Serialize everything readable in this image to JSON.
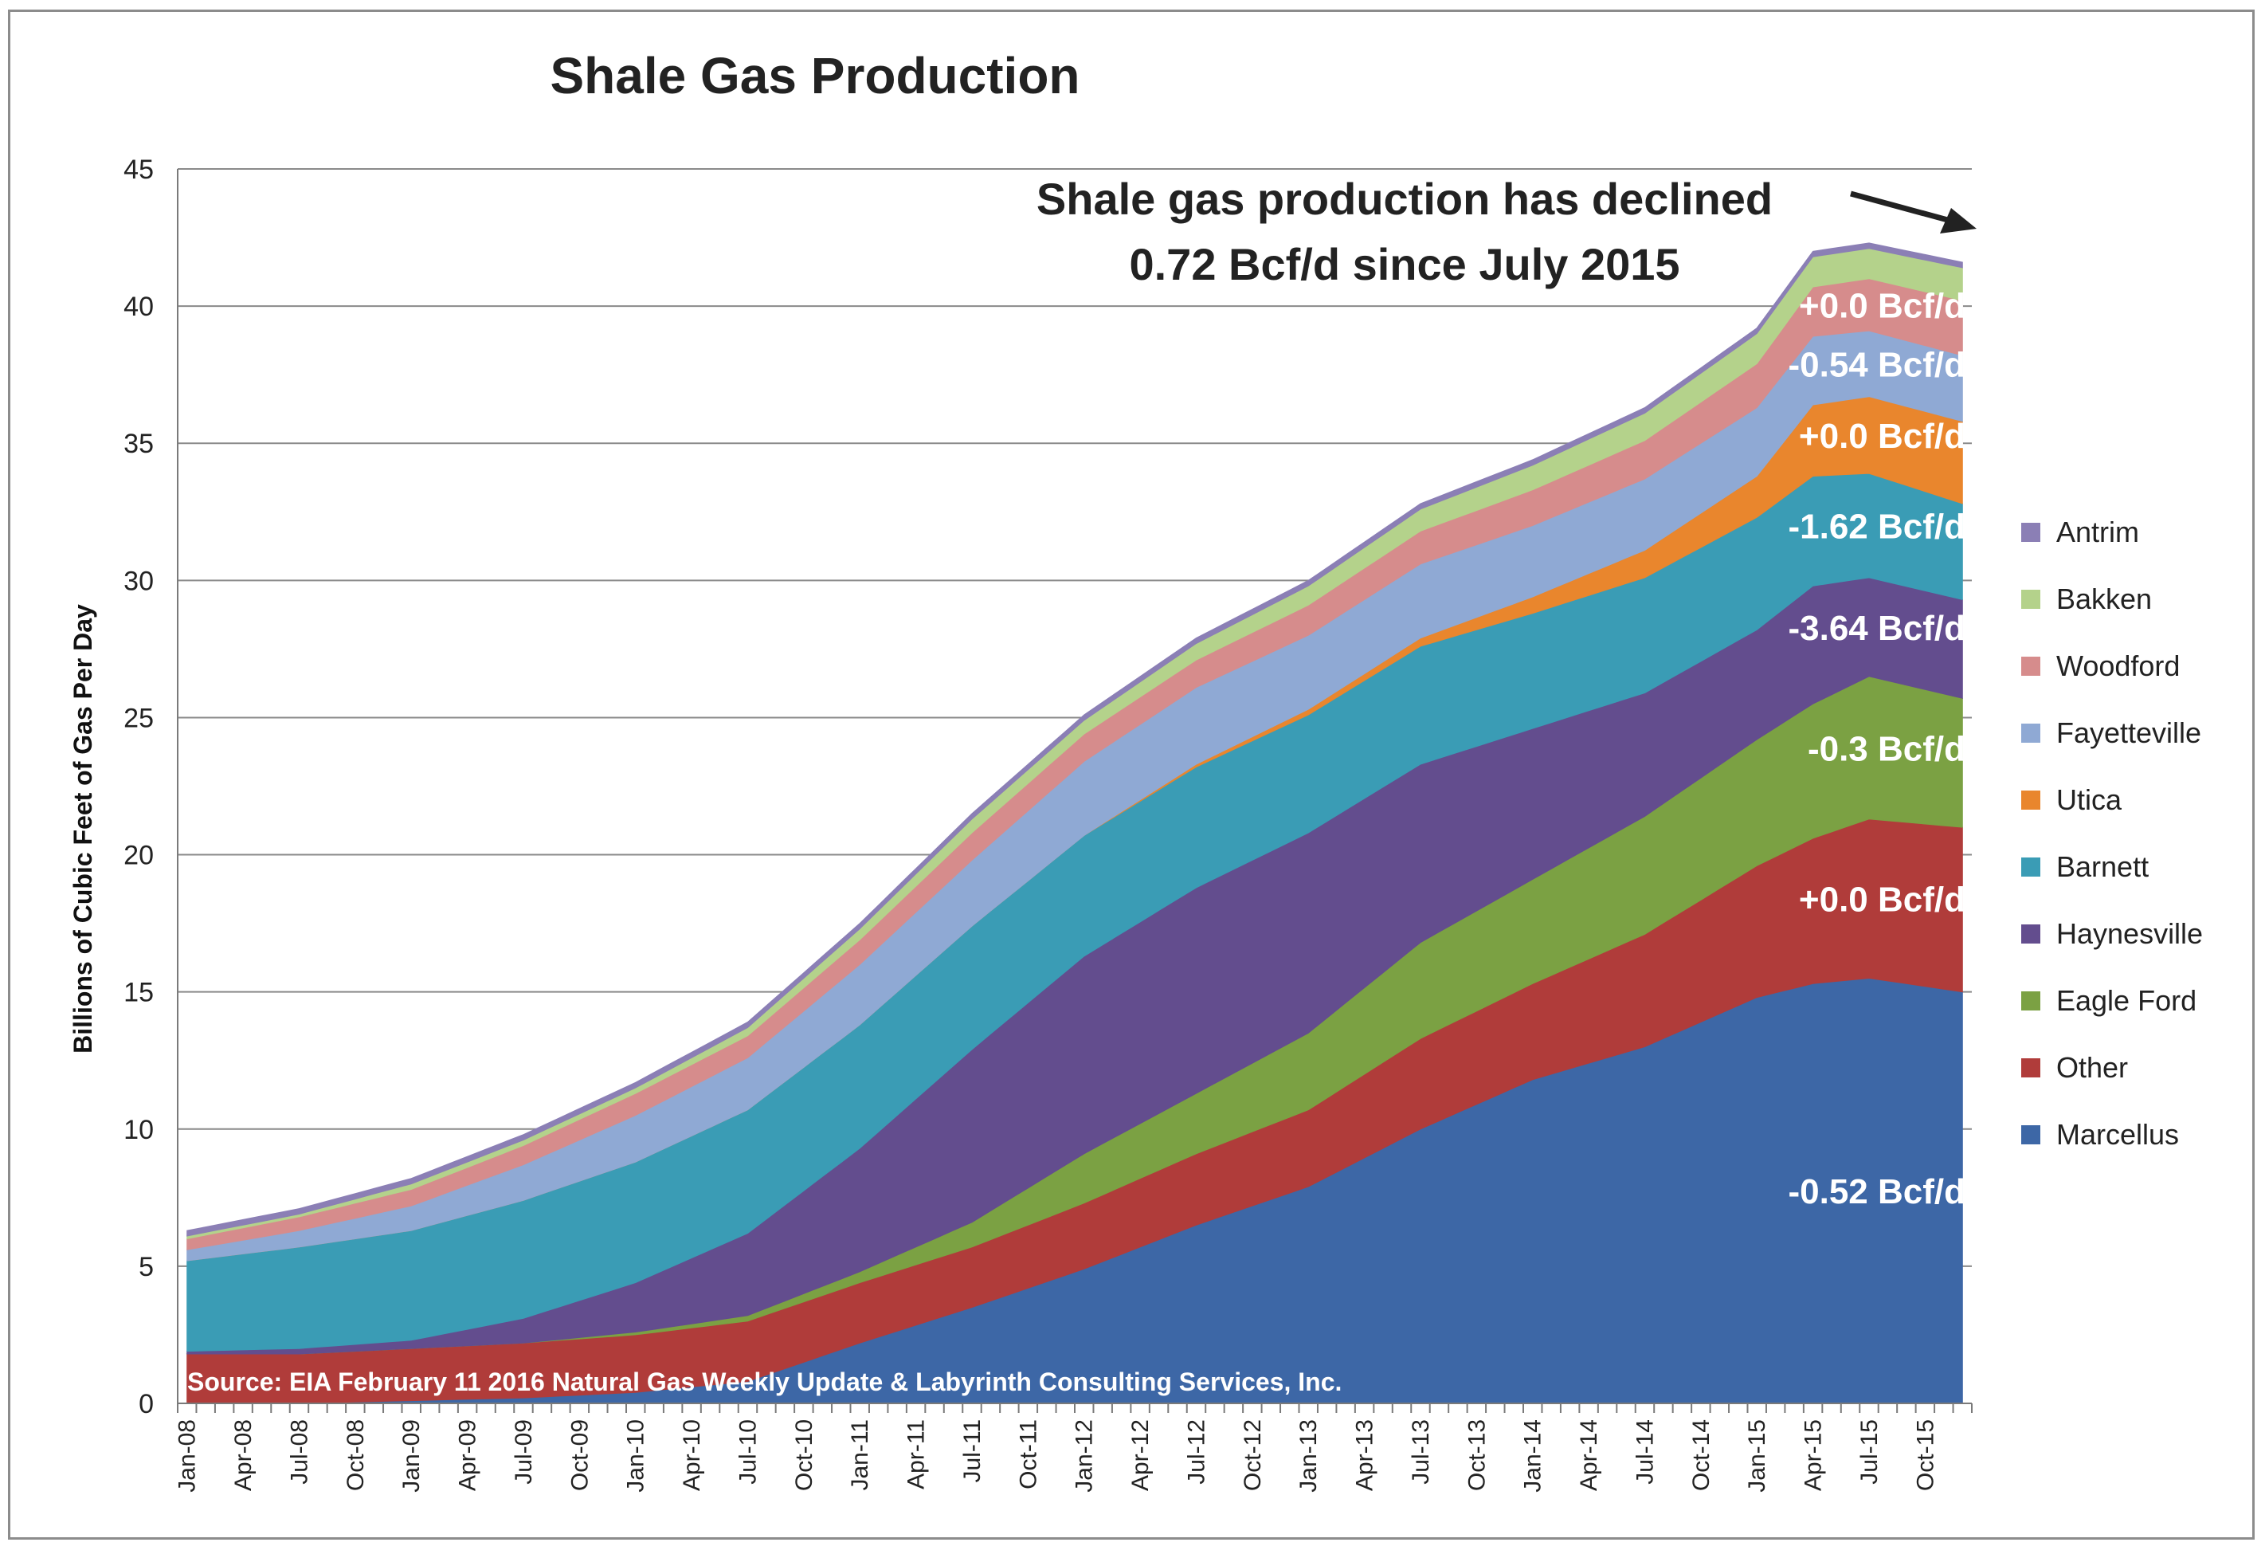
{
  "chart_data": {
    "type": "area",
    "stacked": true,
    "title": "Shale Gas Production",
    "xlabel": "",
    "ylabel": "Billions of Cubic Feet of Gas Per Day",
    "ylim": [
      0,
      45
    ],
    "yticks": [
      0,
      5,
      10,
      15,
      20,
      25,
      30,
      35,
      40,
      45
    ],
    "grid": true,
    "legend_position": "right",
    "x_start": "2008-01",
    "x_tick_labels": [
      "Jan-08",
      "Apr-08",
      "Jul-08",
      "Oct-08",
      "Jan-09",
      "Apr-09",
      "Jul-09",
      "Oct-09",
      "Jan-10",
      "Apr-10",
      "Jul-10",
      "Oct-10",
      "Jan-11",
      "Apr-11",
      "Jul-11",
      "Oct-11",
      "Jan-12",
      "Apr-12",
      "Jul-12",
      "Oct-12",
      "Jan-13",
      "Apr-13",
      "Jul-13",
      "Oct-13",
      "Jan-14",
      "Apr-14",
      "Jul-14",
      "Oct-14",
      "Jan-15",
      "Apr-15",
      "Jul-15",
      "Oct-15"
    ],
    "anchor_months": [
      "Jan-08",
      "Jul-08",
      "Jan-09",
      "Jul-09",
      "Jan-10",
      "Jul-10",
      "Jan-11",
      "Jul-11",
      "Jan-12",
      "Jul-12",
      "Jan-13",
      "Jul-13",
      "Jan-14",
      "Jul-14",
      "Jan-15",
      "Apr-15",
      "Jul-15",
      "Dec-15"
    ],
    "series": [
      {
        "name": "Marcellus",
        "color": "#3d67a6",
        "values": [
          0.0,
          0.0,
          0.1,
          0.2,
          0.4,
          0.8,
          2.2,
          3.5,
          4.9,
          6.5,
          7.9,
          10.0,
          11.8,
          13.0,
          14.8,
          15.3,
          15.5,
          15.0
        ]
      },
      {
        "name": "Other",
        "color": "#b03c3a",
        "values": [
          1.8,
          1.8,
          1.9,
          2.0,
          2.1,
          2.2,
          2.2,
          2.2,
          2.4,
          2.6,
          2.8,
          3.3,
          3.5,
          4.1,
          4.8,
          5.3,
          5.8,
          6.0
        ]
      },
      {
        "name": "Eagle Ford",
        "color": "#7ba143",
        "values": [
          0.0,
          0.0,
          0.0,
          0.0,
          0.1,
          0.2,
          0.4,
          0.9,
          1.8,
          2.2,
          2.8,
          3.5,
          3.8,
          4.3,
          4.6,
          4.9,
          5.2,
          4.7
        ]
      },
      {
        "name": "Haynesville",
        "color": "#634d8e",
        "values": [
          0.1,
          0.2,
          0.3,
          0.9,
          1.8,
          3.0,
          4.5,
          6.3,
          7.2,
          7.5,
          7.3,
          6.5,
          5.5,
          4.5,
          4.0,
          4.3,
          3.6,
          3.6
        ]
      },
      {
        "name": "Barnett",
        "color": "#3a9cb5",
        "values": [
          3.3,
          3.7,
          4.0,
          4.3,
          4.4,
          4.5,
          4.5,
          4.5,
          4.4,
          4.4,
          4.3,
          4.3,
          4.2,
          4.2,
          4.1,
          4.0,
          3.8,
          3.5
        ]
      },
      {
        "name": "Utica",
        "color": "#e9862d",
        "values": [
          0.0,
          0.0,
          0.0,
          0.0,
          0.0,
          0.0,
          0.0,
          0.0,
          0.0,
          0.1,
          0.2,
          0.3,
          0.6,
          1.0,
          1.5,
          2.6,
          2.8,
          3.0
        ]
      },
      {
        "name": "Fayetteville",
        "color": "#8fa9d4",
        "values": [
          0.4,
          0.6,
          0.9,
          1.3,
          1.7,
          1.9,
          2.2,
          2.4,
          2.7,
          2.8,
          2.7,
          2.7,
          2.6,
          2.6,
          2.5,
          2.5,
          2.4,
          2.4
        ]
      },
      {
        "name": "Woodford",
        "color": "#d68c8c",
        "values": [
          0.4,
          0.5,
          0.6,
          0.7,
          0.8,
          0.8,
          0.9,
          1.0,
          1.0,
          1.0,
          1.1,
          1.2,
          1.3,
          1.4,
          1.6,
          1.8,
          1.9,
          2.0
        ]
      },
      {
        "name": "Bakken",
        "color": "#b4d28b",
        "values": [
          0.1,
          0.1,
          0.2,
          0.2,
          0.2,
          0.3,
          0.4,
          0.5,
          0.5,
          0.6,
          0.7,
          0.8,
          0.9,
          1.0,
          1.1,
          1.1,
          1.1,
          1.2
        ]
      },
      {
        "name": "Antrim",
        "color": "#8b7fb5",
        "values": [
          0.2,
          0.2,
          0.2,
          0.2,
          0.2,
          0.2,
          0.2,
          0.2,
          0.2,
          0.2,
          0.2,
          0.2,
          0.2,
          0.2,
          0.2,
          0.2,
          0.2,
          0.2
        ]
      }
    ],
    "series_labels": [
      {
        "text": "-0.52 Bcf/d",
        "series": "Marcellus"
      },
      {
        "text": "+0.0 Bcf/d",
        "series": "Other"
      },
      {
        "text": "-0.3 Bcf/d",
        "series": "Eagle Ford"
      },
      {
        "text": "-3.64 Bcf/d",
        "series": "Haynesville"
      },
      {
        "text": "-1.62 Bcf/d",
        "series": "Barnett"
      },
      {
        "text": "+0.0 Bcf/d",
        "series": "Utica"
      },
      {
        "text": "-0.54 Bcf/d",
        "series": "Fayetteville"
      },
      {
        "text": "+0.0 Bcf/d",
        "series": "Woodford"
      }
    ],
    "annotation": [
      "Shale gas production has declined",
      "0.72 Bcf/d since July 2015"
    ],
    "source": "Source: EIA February 11 2016 Natural Gas Weekly Update & Labyrinth Consulting  Services, Inc."
  }
}
